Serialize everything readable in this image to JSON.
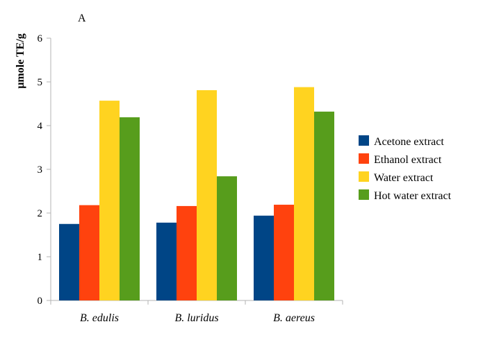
{
  "chart_data": {
    "type": "bar",
    "panel_label": "A",
    "ylabel": "µmole TE/g",
    "xlabel": "",
    "ylim": [
      0,
      6
    ],
    "yticks": [
      0,
      1,
      2,
      3,
      4,
      5,
      6
    ],
    "grid": false,
    "legend_position": "right",
    "categories": [
      "B. edulis",
      "B. luridus",
      "B. aereus"
    ],
    "series": [
      {
        "name": "Acetone extract",
        "color": "#004586",
        "values": [
          1.75,
          1.78,
          1.94
        ]
      },
      {
        "name": "Ethanol extract",
        "color": "#ff420e",
        "values": [
          2.18,
          2.16,
          2.19
        ]
      },
      {
        "name": "Water extract",
        "color": "#ffd320",
        "values": [
          4.57,
          4.81,
          4.88
        ]
      },
      {
        "name": "Hot water extract",
        "color": "#579d1c",
        "values": [
          4.19,
          2.84,
          4.32
        ]
      }
    ]
  }
}
